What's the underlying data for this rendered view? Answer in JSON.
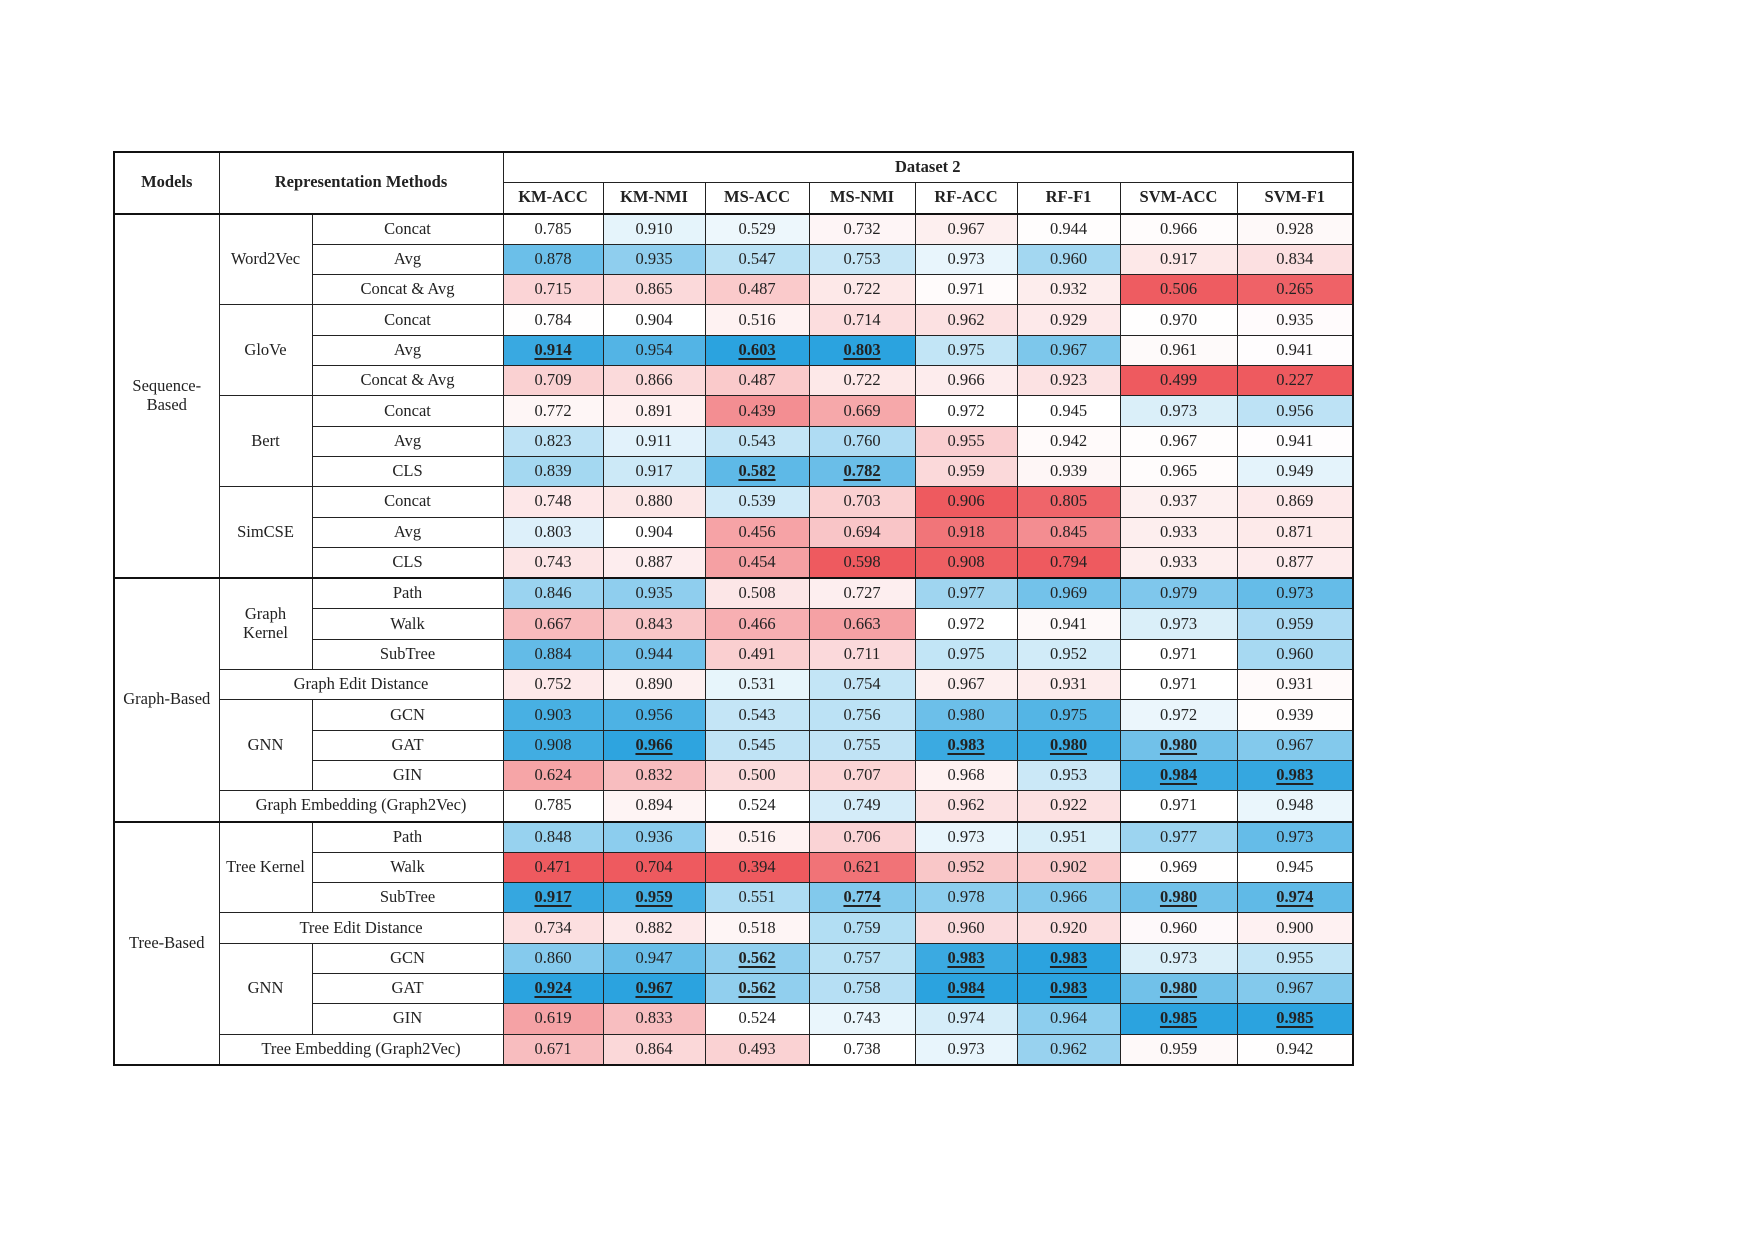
{
  "header": {
    "models": "Models",
    "methods": "Representation Methods",
    "dataset": "Dataset 2",
    "columns": [
      "KM-ACC",
      "KM-NMI",
      "MS-ACC",
      "MS-NMI",
      "RF-ACC",
      "RF-F1",
      "SVM-ACC",
      "SVM-F1"
    ]
  },
  "colors": {
    "best_blue": "#2ba3df",
    "worst_red": "#ee5a5f",
    "neutral": "#ffffff"
  },
  "groups": [
    {
      "name": "Sequence-\nBased",
      "subgroups": [
        {
          "name": "Word2Vec",
          "rows": [
            {
              "method": "Concat",
              "values": [
                "0.785",
                "0.910",
                "0.529",
                "0.732",
                "0.967",
                "0.944",
                "0.966",
                "0.928"
              ]
            },
            {
              "method": "Avg",
              "values": [
                "0.878",
                "0.935",
                "0.547",
                "0.753",
                "0.973",
                "0.960",
                "0.917",
                "0.834"
              ]
            },
            {
              "method": "Concat & Avg",
              "values": [
                "0.715",
                "0.865",
                "0.487",
                "0.722",
                "0.971",
                "0.932",
                "0.506",
                "0.265"
              ]
            }
          ]
        },
        {
          "name": "GloVe",
          "rows": [
            {
              "method": "Concat",
              "values": [
                "0.784",
                "0.904",
                "0.516",
                "0.714",
                "0.962",
                "0.929",
                "0.970",
                "0.935"
              ]
            },
            {
              "method": "Avg",
              "values": [
                "0.914",
                "0.954",
                "0.603",
                "0.803",
                "0.975",
                "0.967",
                "0.961",
                "0.941"
              ],
              "best": [
                0,
                2,
                3
              ]
            },
            {
              "method": "Concat & Avg",
              "values": [
                "0.709",
                "0.866",
                "0.487",
                "0.722",
                "0.966",
                "0.923",
                "0.499",
                "0.227"
              ]
            }
          ]
        },
        {
          "name": "Bert",
          "rows": [
            {
              "method": "Concat",
              "values": [
                "0.772",
                "0.891",
                "0.439",
                "0.669",
                "0.972",
                "0.945",
                "0.973",
                "0.956"
              ]
            },
            {
              "method": "Avg",
              "values": [
                "0.823",
                "0.911",
                "0.543",
                "0.760",
                "0.955",
                "0.942",
                "0.967",
                "0.941"
              ]
            },
            {
              "method": "CLS",
              "values": [
                "0.839",
                "0.917",
                "0.582",
                "0.782",
                "0.959",
                "0.939",
                "0.965",
                "0.949"
              ],
              "best": [
                2,
                3
              ]
            }
          ]
        },
        {
          "name": "SimCSE",
          "rows": [
            {
              "method": "Concat",
              "values": [
                "0.748",
                "0.880",
                "0.539",
                "0.703",
                "0.906",
                "0.805",
                "0.937",
                "0.869"
              ]
            },
            {
              "method": "Avg",
              "values": [
                "0.803",
                "0.904",
                "0.456",
                "0.694",
                "0.918",
                "0.845",
                "0.933",
                "0.871"
              ]
            },
            {
              "method": "CLS",
              "values": [
                "0.743",
                "0.887",
                "0.454",
                "0.598",
                "0.908",
                "0.794",
                "0.933",
                "0.877"
              ]
            }
          ]
        }
      ]
    },
    {
      "name": "Graph-Based",
      "subgroups": [
        {
          "name": "Graph\nKernel",
          "rows": [
            {
              "method": "Path",
              "values": [
                "0.846",
                "0.935",
                "0.508",
                "0.727",
                "0.977",
                "0.969",
                "0.979",
                "0.973"
              ]
            },
            {
              "method": "Walk",
              "values": [
                "0.667",
                "0.843",
                "0.466",
                "0.663",
                "0.972",
                "0.941",
                "0.973",
                "0.959"
              ]
            },
            {
              "method": "SubTree",
              "values": [
                "0.884",
                "0.944",
                "0.491",
                "0.711",
                "0.975",
                "0.952",
                "0.971",
                "0.960"
              ]
            }
          ]
        },
        {
          "name": "Graph Edit Distance",
          "single": true,
          "rows": [
            {
              "method": "",
              "values": [
                "0.752",
                "0.890",
                "0.531",
                "0.754",
                "0.967",
                "0.931",
                "0.971",
                "0.931"
              ]
            }
          ]
        },
        {
          "name": "GNN",
          "rows": [
            {
              "method": "GCN",
              "values": [
                "0.903",
                "0.956",
                "0.543",
                "0.756",
                "0.980",
                "0.975",
                "0.972",
                "0.939"
              ]
            },
            {
              "method": "GAT",
              "values": [
                "0.908",
                "0.966",
                "0.545",
                "0.755",
                "0.983",
                "0.980",
                "0.980",
                "0.967"
              ],
              "best": [
                1,
                4,
                5,
                6
              ]
            },
            {
              "method": "GIN",
              "values": [
                "0.624",
                "0.832",
                "0.500",
                "0.707",
                "0.968",
                "0.953",
                "0.984",
                "0.983"
              ],
              "best": [
                6,
                7
              ]
            }
          ]
        },
        {
          "name": "Graph Embedding (Graph2Vec)",
          "single": true,
          "rows": [
            {
              "method": "",
              "values": [
                "0.785",
                "0.894",
                "0.524",
                "0.749",
                "0.962",
                "0.922",
                "0.971",
                "0.948"
              ]
            }
          ]
        }
      ]
    },
    {
      "name": "Tree-Based",
      "subgroups": [
        {
          "name": "Tree Kernel",
          "rows": [
            {
              "method": "Path",
              "values": [
                "0.848",
                "0.936",
                "0.516",
                "0.706",
                "0.973",
                "0.951",
                "0.977",
                "0.973"
              ]
            },
            {
              "method": "Walk",
              "values": [
                "0.471",
                "0.704",
                "0.394",
                "0.621",
                "0.952",
                "0.902",
                "0.969",
                "0.945"
              ]
            },
            {
              "method": "SubTree",
              "values": [
                "0.917",
                "0.959",
                "0.551",
                "0.774",
                "0.978",
                "0.966",
                "0.980",
                "0.974"
              ],
              "best": [
                0,
                1,
                3,
                6,
                7
              ]
            }
          ]
        },
        {
          "name": "Tree Edit Distance",
          "single": true,
          "rows": [
            {
              "method": "",
              "values": [
                "0.734",
                "0.882",
                "0.518",
                "0.759",
                "0.960",
                "0.920",
                "0.960",
                "0.900"
              ]
            }
          ]
        },
        {
          "name": "GNN",
          "rows": [
            {
              "method": "GCN",
              "values": [
                "0.860",
                "0.947",
                "0.562",
                "0.757",
                "0.983",
                "0.983",
                "0.973",
                "0.955"
              ],
              "best": [
                2,
                4,
                5
              ]
            },
            {
              "method": "GAT",
              "values": [
                "0.924",
                "0.967",
                "0.562",
                "0.758",
                "0.984",
                "0.983",
                "0.980",
                "0.967"
              ],
              "best": [
                0,
                1,
                2,
                4,
                5,
                6
              ]
            },
            {
              "method": "GIN",
              "values": [
                "0.619",
                "0.833",
                "0.524",
                "0.743",
                "0.974",
                "0.964",
                "0.985",
                "0.985"
              ],
              "best": [
                6,
                7
              ]
            }
          ]
        },
        {
          "name": "Tree Embedding (Graph2Vec)",
          "single": true,
          "rows": [
            {
              "method": "",
              "values": [
                "0.671",
                "0.864",
                "0.493",
                "0.738",
                "0.973",
                "0.962",
                "0.959",
                "0.942"
              ]
            }
          ]
        }
      ]
    }
  ]
}
